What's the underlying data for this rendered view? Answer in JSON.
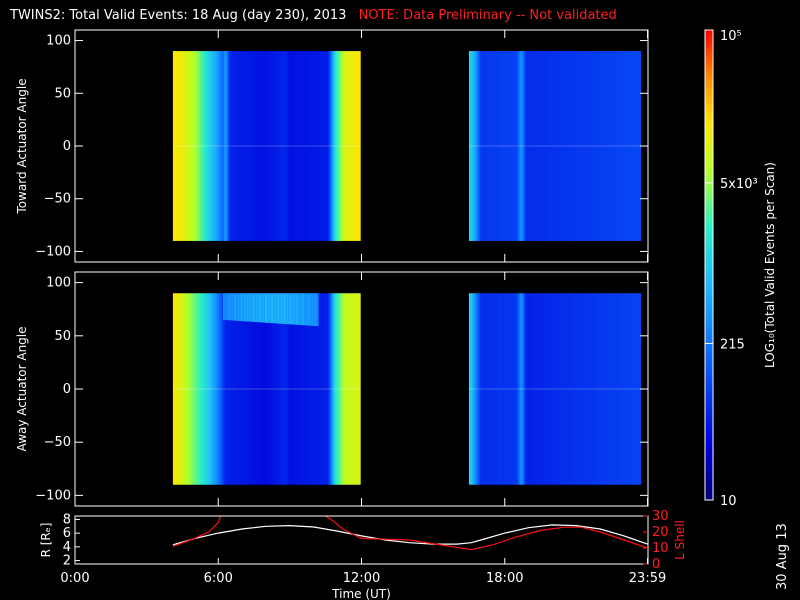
{
  "title": {
    "main": "TWINS2: Total Valid Events: 18 Aug (day 230), 2013",
    "note": "NOTE: Data Preliminary -- Not validated"
  },
  "date_stamp": "30 Aug 13",
  "colors": {
    "note_red": "#ff2020",
    "low_blue": "#0000c8",
    "high_red": "#ff0000",
    "background": "#000000"
  },
  "chart_data": [
    {
      "type": "heatmap",
      "name": "toward",
      "ylabel": "Toward Actuator Angle",
      "ylim": [
        -110,
        110
      ],
      "yticks": [
        "100",
        "50",
        "0",
        "−50",
        "−100"
      ],
      "yticks_values": [
        100,
        50,
        0,
        -50,
        -100
      ],
      "xlim_hours": [
        0,
        24
      ],
      "data_blocks_hours": [
        [
          4.1,
          11.95
        ],
        [
          16.5,
          23.7
        ]
      ],
      "angle_range": [
        -90,
        90
      ],
      "time_profile": [
        {
          "t": 4.1,
          "level": 0.8
        },
        {
          "t": 4.6,
          "level": 0.76
        },
        {
          "t": 5.1,
          "level": 0.68
        },
        {
          "t": 5.5,
          "level": 0.55
        },
        {
          "t": 6.0,
          "level": 0.4
        },
        {
          "t": 6.2,
          "level": 0.3
        },
        {
          "t": 6.3,
          "level": 0.42
        },
        {
          "t": 6.5,
          "level": 0.18
        },
        {
          "t": 8.0,
          "level": 0.15
        },
        {
          "t": 8.8,
          "level": 0.19
        },
        {
          "t": 9.0,
          "level": 0.15
        },
        {
          "t": 10.6,
          "level": 0.17
        },
        {
          "t": 10.9,
          "level": 0.55
        },
        {
          "t": 11.3,
          "level": 0.75
        },
        {
          "t": 11.95,
          "level": 0.8
        },
        {
          "t": 16.5,
          "level": 0.55
        },
        {
          "t": 16.8,
          "level": 0.4
        },
        {
          "t": 17.0,
          "level": 0.22
        },
        {
          "t": 18.5,
          "level": 0.24
        },
        {
          "t": 18.7,
          "level": 0.4
        },
        {
          "t": 18.9,
          "level": 0.2
        },
        {
          "t": 21.0,
          "level": 0.22
        },
        {
          "t": 23.7,
          "level": 0.25
        }
      ]
    },
    {
      "type": "heatmap",
      "name": "away",
      "ylabel": "Away Actuator Angle",
      "ylim": [
        -110,
        110
      ],
      "yticks": [
        "100",
        "50",
        "0",
        "−50",
        "−100"
      ],
      "yticks_values": [
        100,
        50,
        0,
        -50,
        -100
      ],
      "xlim_hours": [
        0,
        24
      ],
      "data_blocks_hours": [
        [
          4.1,
          11.95
        ],
        [
          16.5,
          23.7
        ]
      ],
      "angle_range": [
        -90,
        90
      ],
      "enhancement": {
        "t_start": 6.2,
        "t_end": 10.2,
        "angle_low": 65,
        "angle_high": 90,
        "level": 0.38
      },
      "time_profile": [
        {
          "t": 4.1,
          "level": 0.8
        },
        {
          "t": 4.6,
          "level": 0.72
        },
        {
          "t": 5.1,
          "level": 0.62
        },
        {
          "t": 5.6,
          "level": 0.5
        },
        {
          "t": 6.0,
          "level": 0.35
        },
        {
          "t": 6.3,
          "level": 0.18
        },
        {
          "t": 8.0,
          "level": 0.14
        },
        {
          "t": 8.8,
          "level": 0.19
        },
        {
          "t": 9.0,
          "level": 0.15
        },
        {
          "t": 10.6,
          "level": 0.18
        },
        {
          "t": 10.9,
          "level": 0.55
        },
        {
          "t": 11.3,
          "level": 0.72
        },
        {
          "t": 11.95,
          "level": 0.75
        },
        {
          "t": 16.5,
          "level": 0.55
        },
        {
          "t": 16.8,
          "level": 0.36
        },
        {
          "t": 17.0,
          "level": 0.2
        },
        {
          "t": 18.5,
          "level": 0.22
        },
        {
          "t": 18.7,
          "level": 0.4
        },
        {
          "t": 18.9,
          "level": 0.18
        },
        {
          "t": 21.0,
          "level": 0.21
        },
        {
          "t": 23.7,
          "level": 0.24
        }
      ]
    },
    {
      "type": "line",
      "name": "orbit",
      "ylabel": "R [Rₑ]",
      "ylabel_right": "L Shell",
      "xlabel": "Time (UT)",
      "xticks": [
        "0:00",
        "6:00",
        "12:00",
        "18:00",
        "23:59"
      ],
      "xticks_hours": [
        0,
        6,
        12,
        18,
        23.98
      ],
      "ylim_left": [
        1.5,
        8.5
      ],
      "yticks_left": [
        "2",
        "4",
        "6",
        "8"
      ],
      "yticks_left_values": [
        2,
        4,
        6,
        8
      ],
      "ylim_right": [
        0,
        30
      ],
      "yticks_right": [
        "0",
        "10",
        "20",
        "30"
      ],
      "yticks_right_values": [
        0,
        10,
        20,
        30
      ],
      "series": [
        {
          "name": "R",
          "axis": "left",
          "color": "#ffffff",
          "x": [
            4.1,
            5.0,
            6.0,
            7.0,
            8.0,
            9.0,
            10.0,
            11.0,
            12.0,
            13.0,
            14.0,
            15.0,
            16.0,
            16.6,
            17.0,
            18.0,
            19.0,
            20.0,
            21.0,
            22.0,
            23.0,
            23.98
          ],
          "y": [
            4.3,
            5.2,
            6.0,
            6.6,
            7.0,
            7.1,
            6.9,
            6.3,
            5.6,
            5.0,
            4.6,
            4.4,
            4.4,
            4.6,
            5.0,
            6.0,
            6.8,
            7.2,
            7.1,
            6.6,
            5.6,
            4.4
          ]
        },
        {
          "name": "L Shell",
          "axis": "right",
          "color": "#ff1010",
          "segments": [
            {
              "x": [
                4.1,
                5.0,
                5.6,
                6.0,
                6.1
              ],
              "y": [
                11,
                16,
                20,
                26,
                30
              ]
            },
            {
              "x": [
                10.5,
                10.8,
                11.2,
                11.6,
                12.0,
                14.0,
                16.6,
                17.5,
                18.5,
                19.5,
                20.5,
                21.2,
                22.0,
                23.0,
                23.98
              ],
              "y": [
                30,
                27,
                22,
                19,
                16,
                15,
                9,
                12,
                17,
                21,
                23,
                23,
                20,
                15,
                10
              ]
            }
          ]
        }
      ]
    },
    {
      "type": "colorbar",
      "name": "colorbar",
      "label": "LOG₁₀(Total Valid Events per Scan)",
      "ticks": [
        {
          "label": "10",
          "value": 10
        },
        {
          "label": "215",
          "value": 215
        },
        {
          "label": "5x10³",
          "value": 5000
        },
        {
          "label": "10⁵",
          "value": 100000
        }
      ],
      "range": [
        10,
        100000
      ],
      "scale": "log"
    }
  ]
}
